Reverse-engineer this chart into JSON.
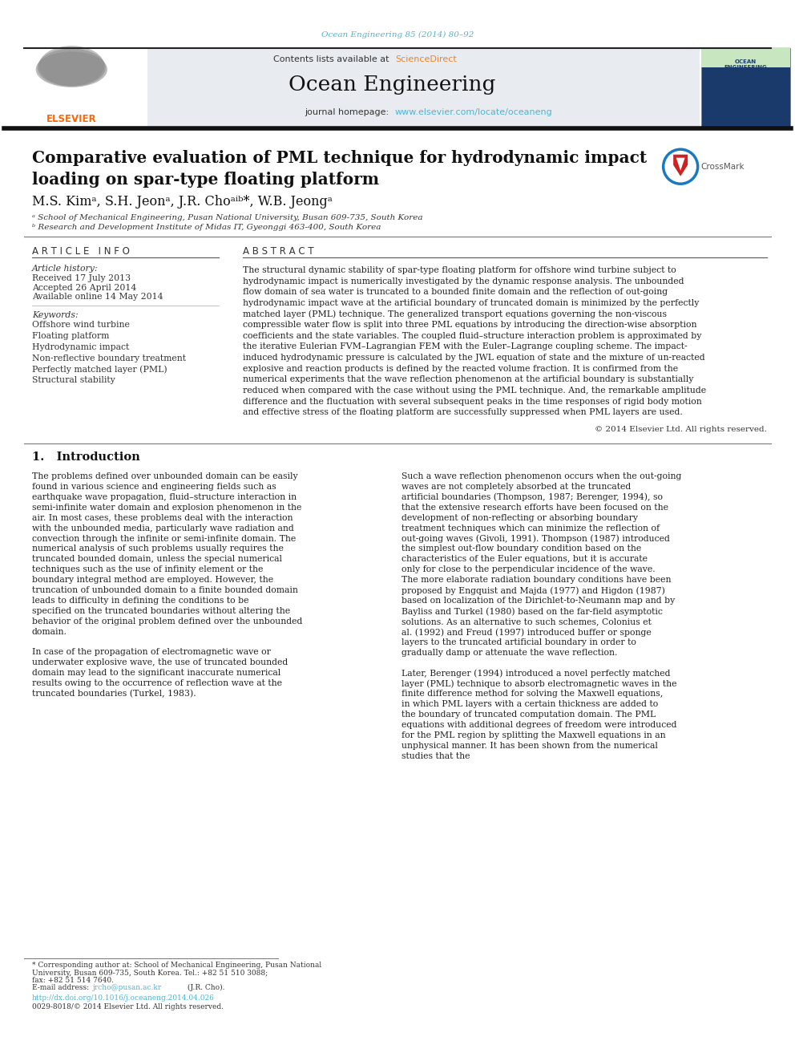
{
  "page_width": 9.92,
  "page_height": 13.23,
  "bg_color": "#ffffff",
  "journal_ref": "Ocean Engineering 85 (2014) 80–92",
  "journal_ref_color": "#4db3d4",
  "contents_line": "Contents lists available at",
  "sciencedirect_text": "ScienceDirect",
  "sciencedirect_color": "#f58220",
  "journal_name": "Ocean Engineering",
  "journal_homepage_prefix": "journal homepage: ",
  "journal_url": "www.elsevier.com/locate/oceaneng",
  "journal_url_color": "#4db3d4",
  "header_bg": "#e8ecf0",
  "elsevier_color": "#ff6600",
  "divider_color": "#000000",
  "article_info_header": "A R T I C L E   I N F O",
  "abstract_header": "A B S T R A C T",
  "history_label": "Article history:",
  "received": "Received 17 July 2013",
  "accepted": "Accepted 26 April 2014",
  "online": "Available online 14 May 2014",
  "keywords_label": "Keywords:",
  "keywords": [
    "Offshore wind turbine",
    "Floating platform",
    "Hydrodynamic impact",
    "Non-reflective boundary treatment",
    "Perfectly matched layer (PML)",
    "Structural stability"
  ],
  "abstract_lines": [
    "The structural dynamic stability of spar-type floating platform for offshore wind turbine subject to",
    "hydrodynamic impact is numerically investigated by the dynamic response analysis. The unbounded",
    "flow domain of sea water is truncated to a bounded finite domain and the reflection of out-going",
    "hydrodynamic impact wave at the artificial boundary of truncated domain is minimized by the perfectly",
    "matched layer (PML) technique. The generalized transport equations governing the non-viscous",
    "compressible water flow is split into three PML equations by introducing the direction-wise absorption",
    "coefficients and the state variables. The coupled fluid–structure interaction problem is approximated by",
    "the iterative Eulerian FVM–Lagrangian FEM with the Euler–Lagrange coupling scheme. The impact-",
    "induced hydrodynamic pressure is calculated by the JWL equation of state and the mixture of un-reacted",
    "explosive and reaction products is defined by the reacted volume fraction. It is confirmed from the",
    "numerical experiments that the wave reflection phenomenon at the artificial boundary is substantially",
    "reduced when compared with the case without using the PML technique. And, the remarkable amplitude",
    "difference and the fluctuation with several subsequent peaks in the time responses of rigid body motion",
    "and effective stress of the floating platform are successfully suppressed when PML layers are used."
  ],
  "copyright_line": "© 2014 Elsevier Ltd. All rights reserved.",
  "section1_header": "1.   Introduction",
  "intro_col1_paras": [
    "The problems defined over unbounded domain can be easily found in various science and engineering fields such as earthquake wave propagation, fluid–structure interaction in semi-infinite water domain and explosion phenomenon in the air. In most cases, these problems deal with the interaction with the unbounded media, particularly wave radiation and convection through the infinite or semi-infinite domain. The numerical analysis of such problems usually requires the truncated bounded domain, unless the special numerical techniques such as the use of infinity element or the boundary integral method are employed. However, the truncation of unbounded domain to a finite bounded domain leads to difficulty in defining the conditions to be specified on the truncated boundaries without altering the behavior of the original problem defined over the unbounded domain.",
    "In case of the propagation of electromagnetic wave or underwater explosive wave, the use of truncated bounded domain may lead to the significant inaccurate numerical results owing to the occurrence of reflection wave at the truncated boundaries (Turkel, 1983)."
  ],
  "intro_col2_paras": [
    "Such a wave reflection phenomenon occurs when the out-going waves are not completely absorbed at the truncated artificial boundaries (Thompson, 1987; Berenger, 1994), so that the extensive research efforts have been focused on the development of non-reflecting or absorbing boundary treatment techniques which can minimize the reflection of out-going waves (Givoli, 1991). Thompson (1987) introduced the simplest out-flow boundary condition based on the characteristics of the Euler equations, but it is accurate only for close to the perpendicular incidence of the wave. The more elaborate radiation boundary conditions have been proposed by Engquist and Majda (1977) and Higdon (1987) based on localization of the Dirichlet-to-Neumann map and by Bayliss and Turkel (1980) based on the far-field asymptotic solutions. As an alternative to such schemes, Colonius et al. (1992) and Freud (1997) introduced buffer or sponge layers to the truncated artificial boundary in order to gradually damp or attenuate the wave reflection.",
    "Later, Berenger (1994) introduced a novel perfectly matched layer (PML) technique to absorb electromagnetic waves in the finite difference method for solving the Maxwell equations, in which PML layers with a certain thickness are added to the boundary of truncated computation domain. The PML equations with additional degrees of freedom were introduced for the PML region by splitting the Maxwell equations in an unphysical manner. It has been shown from the numerical studies that the"
  ],
  "footnote_star": "* Corresponding author at: School of Mechanical Engineering, Pusan National",
  "footnote_star2": "University, Busan 609-735, South Korea. Tel.: +82 51 510 3088;",
  "footnote_fax": "fax: +82 51 514 7640.",
  "footnote_email_prefix": "E-mail address: ",
  "footnote_email_link": "jrcho@pusan.ac.kr",
  "footnote_email_suffix": " (J.R. Cho).",
  "footnote_doi": "http://dx.doi.org/10.1016/j.oceaneng.2014.04.026",
  "footnote_issn": "0029-8018/© 2014 Elsevier Ltd. All rights reserved.",
  "link_color": "#4db3d4",
  "dark_link_color": "#336699"
}
